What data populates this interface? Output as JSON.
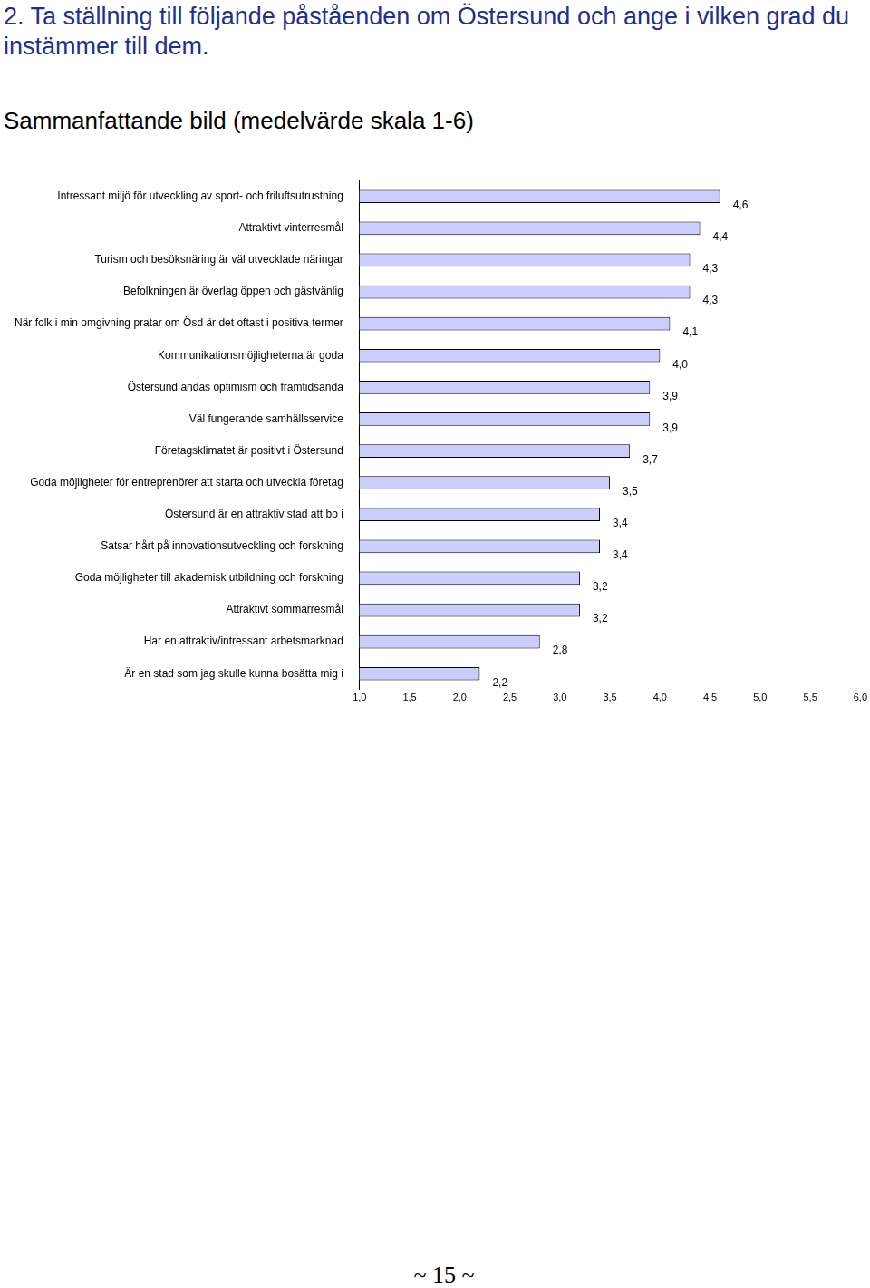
{
  "header": "2. Ta ställning till följande påståenden om Östersund och ange i vilken grad du instämmer till dem.",
  "footer": "~ 15 ~",
  "chart_data": {
    "type": "bar",
    "orientation": "horizontal",
    "title": "Sammanfattande bild (medelvärde skala 1-6)",
    "categories": [
      "Intressant miljö för utveckling av sport- och friluftsutrustning",
      "Attraktivt vinterresmål",
      "Turism och besöksnäring är väl utvecklade näringar",
      "Befolkningen är överlag öppen och gästvänlig",
      "När folk i min omgivning pratar om Ösd är det oftast i positiva termer",
      "Kommunikationsmöjligheterna är goda",
      "Östersund andas optimism och framtidsanda",
      "Väl fungerande samhällsservice",
      "Företagsklimatet är positivt i Östersund",
      "Goda möjligheter för entreprenörer att starta och utveckla företag",
      "Östersund är en attraktiv stad att bo i",
      "Satsar hårt på innovationsutveckling och forskning",
      "Goda möjligheter till akademisk utbildning och forskning",
      "Attraktivt sommarresmål",
      "Har en attraktiv/intressant arbetsmarknad",
      "Är en stad som jag skulle kunna bosätta mig i"
    ],
    "values": [
      4.6,
      4.4,
      4.3,
      4.3,
      4.1,
      4.0,
      3.9,
      3.9,
      3.7,
      3.5,
      3.4,
      3.4,
      3.2,
      3.2,
      2.8,
      2.2
    ],
    "value_labels": [
      "4,6",
      "4,4",
      "4,3",
      "4,3",
      "4,1",
      "4,0",
      "3,9",
      "3,9",
      "3,7",
      "3,5",
      "3,4",
      "3,4",
      "3,2",
      "3,2",
      "2,8",
      "2,2"
    ],
    "data_labels": true,
    "color": "#ccccff",
    "xlim": [
      1,
      6
    ],
    "xticks": [
      {
        "value": 1,
        "label": "1,0"
      },
      {
        "value": 1.5,
        "label": "1,5"
      },
      {
        "value": 2,
        "label": "2,0"
      },
      {
        "value": 2.5,
        "label": "2,5"
      },
      {
        "value": 3,
        "label": "3,0"
      },
      {
        "value": 3.5,
        "label": "3,5"
      },
      {
        "value": 4,
        "label": "4,0"
      },
      {
        "value": 4.5,
        "label": "4,5"
      },
      {
        "value": 5,
        "label": "5,0"
      },
      {
        "value": 5.5,
        "label": "5,5"
      },
      {
        "value": 6,
        "label": "6,0"
      }
    ],
    "grid": false
  }
}
